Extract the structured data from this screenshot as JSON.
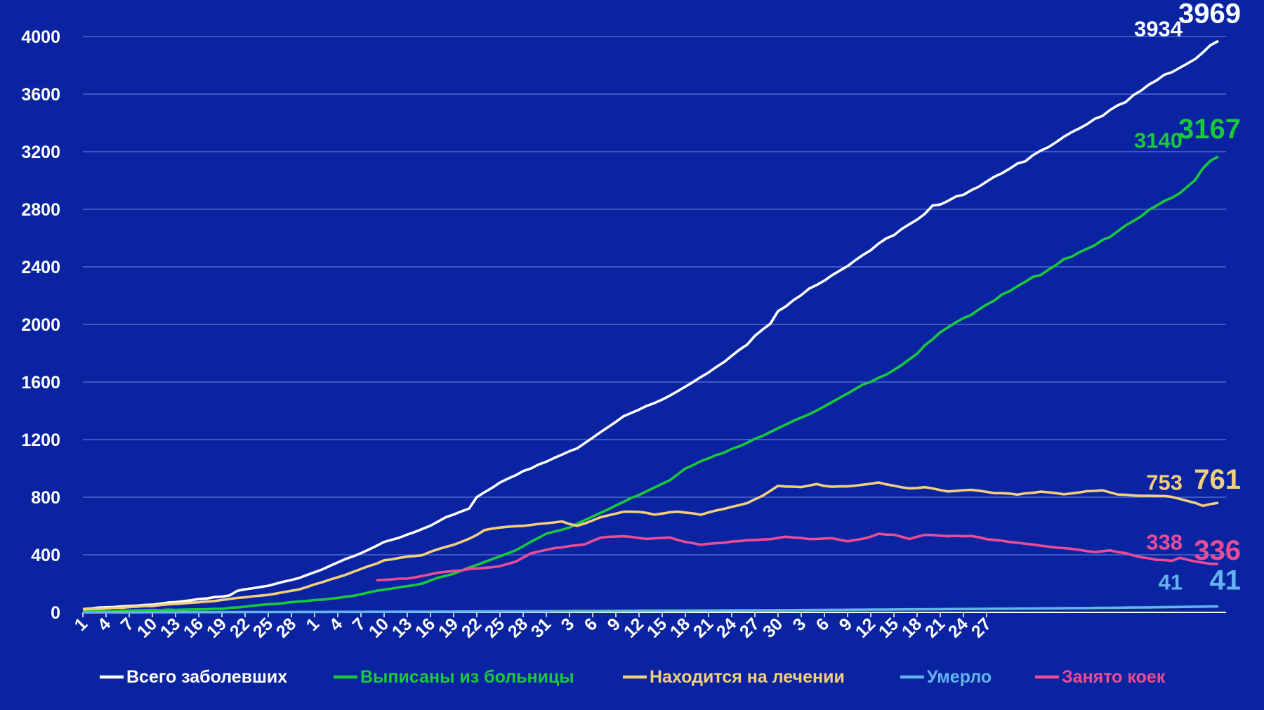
{
  "chart_data": {
    "type": "line",
    "title": "",
    "xlabel": "",
    "ylabel": "",
    "ylim": [
      0,
      4000
    ],
    "yticks": [
      0,
      400,
      800,
      1200,
      1600,
      2000,
      2400,
      2800,
      3200,
      3600,
      4000
    ],
    "grid": true,
    "legend_position": "bottom",
    "x_count": 119,
    "x_tick_labels": [
      "1",
      "4",
      "7",
      "10",
      "13",
      "16",
      "19",
      "22",
      "25",
      "28",
      "1",
      "4",
      "7",
      "10",
      "13",
      "16",
      "19",
      "22",
      "25",
      "28",
      "31",
      "3",
      "6",
      "9",
      "12",
      "15",
      "18",
      "21",
      "24",
      "27",
      "30",
      "3",
      "6",
      "9",
      "12",
      "15",
      "18",
      "21",
      "24",
      "27"
    ],
    "series": [
      {
        "name": "Всего заболевших",
        "color": "#ffffff",
        "start_index": 0,
        "points": [
          [
            0,
            25
          ],
          [
            9,
            55
          ],
          [
            18,
            110
          ],
          [
            19,
            120
          ],
          [
            20,
            150
          ],
          [
            24,
            185
          ],
          [
            28,
            240
          ],
          [
            31,
            300
          ],
          [
            34,
            370
          ],
          [
            36,
            410
          ],
          [
            39,
            490
          ],
          [
            41,
            520
          ],
          [
            45,
            600
          ],
          [
            47,
            660
          ],
          [
            50,
            720
          ],
          [
            51,
            800
          ],
          [
            54,
            900
          ],
          [
            57,
            980
          ],
          [
            61,
            1070
          ],
          [
            64,
            1140
          ],
          [
            67,
            1250
          ],
          [
            70,
            1360
          ],
          [
            72,
            1410
          ],
          [
            75,
            1480
          ],
          [
            77,
            1540
          ],
          [
            80,
            1630
          ],
          [
            83,
            1740
          ],
          [
            86,
            1860
          ],
          [
            87,
            1920
          ],
          [
            89,
            2010
          ],
          [
            90,
            2090
          ],
          [
            93,
            2210
          ],
          [
            96,
            2310
          ],
          [
            100,
            2440
          ],
          [
            103,
            2560
          ],
          [
            106,
            2660
          ],
          [
            109,
            2770
          ],
          [
            110,
            2820
          ],
          [
            113,
            2880
          ],
          [
            116,
            2960
          ],
          [
            119,
            3050
          ],
          [
            122,
            3140
          ],
          [
            125,
            3240
          ],
          [
            128,
            3340
          ],
          [
            132,
            3450
          ],
          [
            135,
            3550
          ],
          [
            138,
            3670
          ],
          [
            141,
            3760
          ],
          [
            144,
            3850
          ],
          [
            146,
            3934
          ],
          [
            147,
            3969
          ]
        ]
      },
      {
        "name": "Выписаны из больницы",
        "color": "#19c93a",
        "start_index": 0,
        "points": [
          [
            0,
            5
          ],
          [
            18,
            25
          ],
          [
            24,
            55
          ],
          [
            29,
            80
          ],
          [
            33,
            100
          ],
          [
            35,
            115
          ],
          [
            38,
            150
          ],
          [
            41,
            175
          ],
          [
            44,
            200
          ],
          [
            46,
            240
          ],
          [
            48,
            270
          ],
          [
            50,
            310
          ],
          [
            53,
            370
          ],
          [
            56,
            430
          ],
          [
            58,
            490
          ],
          [
            60,
            545
          ],
          [
            63,
            590
          ],
          [
            65,
            640
          ],
          [
            67,
            690
          ],
          [
            70,
            770
          ],
          [
            73,
            840
          ],
          [
            76,
            920
          ],
          [
            78,
            1000
          ],
          [
            80,
            1050
          ],
          [
            83,
            1110
          ],
          [
            86,
            1180
          ],
          [
            89,
            1250
          ],
          [
            92,
            1330
          ],
          [
            95,
            1400
          ],
          [
            98,
            1490
          ],
          [
            101,
            1580
          ],
          [
            104,
            1650
          ],
          [
            106,
            1720
          ],
          [
            108,
            1800
          ],
          [
            110,
            1900
          ],
          [
            112,
            1980
          ],
          [
            115,
            2070
          ],
          [
            118,
            2170
          ],
          [
            121,
            2270
          ],
          [
            124,
            2350
          ],
          [
            127,
            2450
          ],
          [
            130,
            2520
          ],
          [
            132,
            2580
          ],
          [
            135,
            2680
          ],
          [
            138,
            2790
          ],
          [
            141,
            2880
          ],
          [
            144,
            3000
          ],
          [
            145,
            3080
          ],
          [
            146,
            3140
          ],
          [
            147,
            3167
          ]
        ]
      },
      {
        "name": "Находится на лечении",
        "color": "#f2cf7b",
        "start_index": 0,
        "points": [
          [
            0,
            20
          ],
          [
            9,
            45
          ],
          [
            18,
            85
          ],
          [
            19,
            95
          ],
          [
            20,
            100
          ],
          [
            24,
            120
          ],
          [
            28,
            160
          ],
          [
            31,
            210
          ],
          [
            34,
            260
          ],
          [
            36,
            300
          ],
          [
            39,
            360
          ],
          [
            41,
            380
          ],
          [
            44,
            400
          ],
          [
            46,
            440
          ],
          [
            48,
            470
          ],
          [
            50,
            510
          ],
          [
            52,
            570
          ],
          [
            54,
            590
          ],
          [
            57,
            600
          ],
          [
            60,
            620
          ],
          [
            62,
            630
          ],
          [
            64,
            600
          ],
          [
            67,
            660
          ],
          [
            70,
            700
          ],
          [
            72,
            700
          ],
          [
            74,
            680
          ],
          [
            77,
            700
          ],
          [
            80,
            680
          ],
          [
            83,
            720
          ],
          [
            86,
            760
          ],
          [
            88,
            810
          ],
          [
            90,
            880
          ],
          [
            93,
            870
          ],
          [
            95,
            890
          ],
          [
            97,
            870
          ],
          [
            100,
            880
          ],
          [
            103,
            900
          ],
          [
            105,
            880
          ],
          [
            107,
            860
          ],
          [
            109,
            870
          ],
          [
            112,
            840
          ],
          [
            115,
            850
          ],
          [
            118,
            830
          ],
          [
            121,
            820
          ],
          [
            124,
            840
          ],
          [
            127,
            820
          ],
          [
            130,
            840
          ],
          [
            132,
            850
          ],
          [
            134,
            820
          ],
          [
            137,
            810
          ],
          [
            140,
            810
          ],
          [
            142,
            790
          ],
          [
            144,
            760
          ],
          [
            145,
            740
          ],
          [
            146,
            753
          ],
          [
            147,
            761
          ]
        ]
      },
      {
        "name": "Умерло",
        "color": "#63b3f0",
        "start_index": 0,
        "points": [
          [
            0,
            0
          ],
          [
            20,
            2
          ],
          [
            40,
            4
          ],
          [
            60,
            8
          ],
          [
            75,
            12
          ],
          [
            90,
            15
          ],
          [
            105,
            20
          ],
          [
            120,
            26
          ],
          [
            130,
            30
          ],
          [
            140,
            36
          ],
          [
            146,
            41
          ],
          [
            147,
            41
          ]
        ]
      },
      {
        "name": "Занято коек",
        "color": "#ec4c95",
        "start_index": 38,
        "points": [
          [
            38,
            225
          ],
          [
            42,
            235
          ],
          [
            46,
            275
          ],
          [
            50,
            300
          ],
          [
            54,
            320
          ],
          [
            56,
            350
          ],
          [
            58,
            410
          ],
          [
            61,
            445
          ],
          [
            63,
            460
          ],
          [
            65,
            475
          ],
          [
            67,
            520
          ],
          [
            70,
            530
          ],
          [
            73,
            510
          ],
          [
            76,
            520
          ],
          [
            78,
            490
          ],
          [
            80,
            470
          ],
          [
            83,
            485
          ],
          [
            86,
            500
          ],
          [
            89,
            510
          ],
          [
            91,
            525
          ],
          [
            94,
            510
          ],
          [
            97,
            515
          ],
          [
            99,
            495
          ],
          [
            101,
            510
          ],
          [
            103,
            545
          ],
          [
            105,
            540
          ],
          [
            107,
            510
          ],
          [
            109,
            540
          ],
          [
            112,
            530
          ],
          [
            115,
            530
          ],
          [
            117,
            510
          ],
          [
            120,
            490
          ],
          [
            123,
            470
          ],
          [
            126,
            450
          ],
          [
            129,
            435
          ],
          [
            131,
            420
          ],
          [
            133,
            430
          ],
          [
            135,
            410
          ],
          [
            137,
            385
          ],
          [
            139,
            365
          ],
          [
            141,
            360
          ],
          [
            142,
            380
          ],
          [
            144,
            355
          ],
          [
            145,
            345
          ],
          [
            146,
            338
          ],
          [
            147,
            336
          ]
        ]
      }
    ],
    "annotations": [
      {
        "series": "Всего заболевших",
        "x": 146,
        "value": "3934",
        "emphasis": false
      },
      {
        "series": "Всего заболевших",
        "x": 147,
        "value": "3969",
        "emphasis": true
      },
      {
        "series": "Выписаны из больницы",
        "x": 146,
        "value": "3140",
        "emphasis": false
      },
      {
        "series": "Выписаны из больницы",
        "x": 147,
        "value": "3167",
        "emphasis": true
      },
      {
        "series": "Находится на лечении",
        "x": 146,
        "value": "753",
        "emphasis": false
      },
      {
        "series": "Находится на лечении",
        "x": 147,
        "value": "761",
        "emphasis": true
      },
      {
        "series": "Занято коек",
        "x": 146,
        "value": "338",
        "emphasis": false
      },
      {
        "series": "Занято коек",
        "x": 147,
        "value": "336",
        "emphasis": true
      },
      {
        "series": "Умерло",
        "x": 146,
        "value": "41",
        "emphasis": false
      },
      {
        "series": "Умерло",
        "x": 147,
        "value": "41",
        "emphasis": true
      }
    ]
  },
  "legend": {
    "items": [
      {
        "label": "Всего заболевших",
        "color": "#ffffff"
      },
      {
        "label": "Выписаны из больницы",
        "color": "#19c93a"
      },
      {
        "label": "Находится на лечении",
        "color": "#f2cf7b"
      },
      {
        "label": "Умерло",
        "color": "#63b3f0"
      },
      {
        "label": "Занято коек",
        "color": "#ec4c95"
      }
    ]
  },
  "colors": {
    "background": "#0a23a0",
    "grid": "#5b78d8",
    "axis_text": "#ffffff"
  }
}
